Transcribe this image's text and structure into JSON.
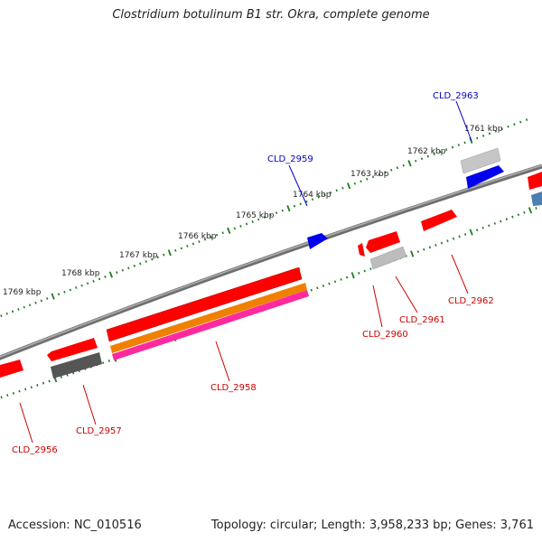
{
  "title": "Clostridium botulinum B1 str. Okra, complete genome",
  "footer": {
    "accession": "Accession: NC_010516",
    "stats": "Topology: circular; Length: 3,958,233 bp; Genes: 3,761"
  },
  "colors": {
    "backbone": "#7a7a7a",
    "tick": "#1e7a1e",
    "gene_red": "#ff0000",
    "gene_blue": "#0000ee",
    "gene_dark_gray": "#555555",
    "gene_light_gray": "#bdbdbd",
    "gene_orange": "#f08000",
    "gene_magenta": "#ff2a9d",
    "gene_steel_blue": "#4a7fb0",
    "label_blue": "#0000cc",
    "label_red": "#cc0000"
  },
  "kbp_labels": [
    "1761 kbp",
    "1762 kbp",
    "1763 kbp",
    "1764 kbp",
    "1765 kbp",
    "1766 kbp",
    "1767 kbp",
    "1768 kbp",
    "1769 kbp"
  ],
  "gene_labels": {
    "cld2956": "CLD_2956",
    "cld2957": "CLD_2957",
    "cld2958": "CLD_2958",
    "cld2959": "CLD_2959",
    "cld2960": "CLD_2960",
    "cld2961": "CLD_2961",
    "cld2962": "CLD_2962",
    "cld2963": "CLD_2963"
  }
}
